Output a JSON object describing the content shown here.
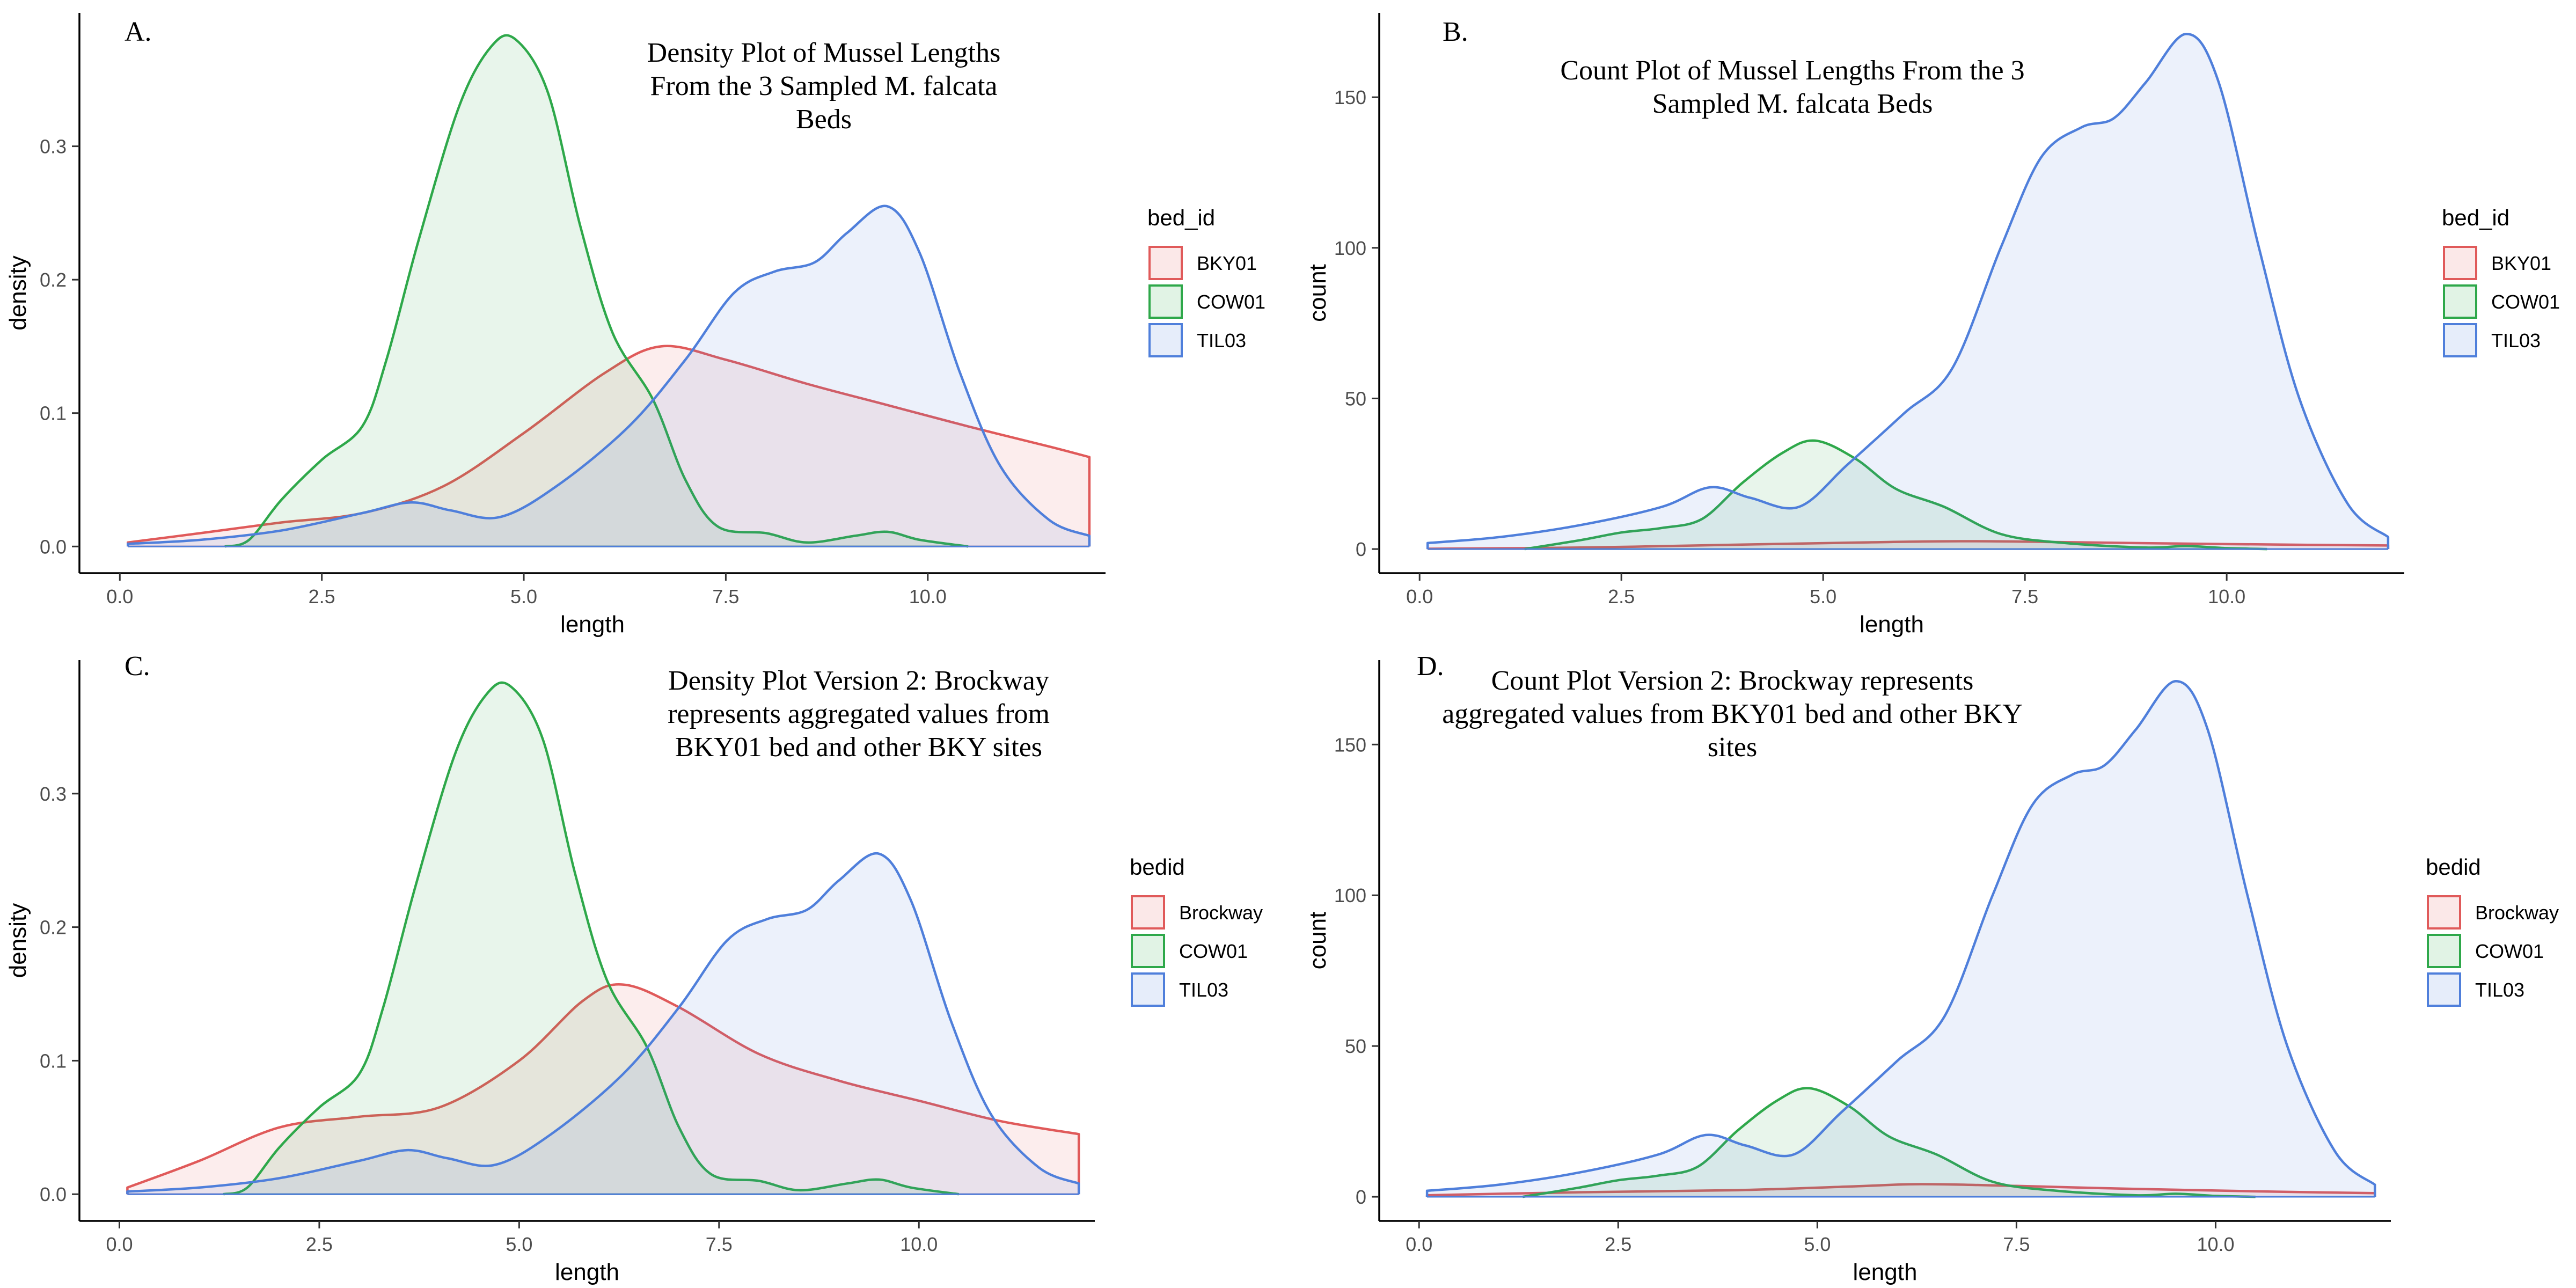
{
  "colors": {
    "red": "#e05a5a",
    "green": "#2ea84a",
    "blue": "#4f7fdb"
  },
  "chart_data": [
    {
      "type": "area",
      "panel": "A.",
      "title_lines": [
        "Density Plot of Mussel Lengths",
        "From the 3 Sampled M. falcata",
        "Beds"
      ],
      "xlabel": "length",
      "ylabel": "density",
      "xlim": [
        -0.5,
        12.2
      ],
      "ylim": [
        -0.02,
        0.4
      ],
      "xticks": [
        0.0,
        2.5,
        5.0,
        7.5,
        10.0
      ],
      "yticks": [
        0.0,
        0.1,
        0.2,
        0.3
      ],
      "xtick_labels": [
        "0.0",
        "2.5",
        "5.0",
        "7.5",
        "10.0"
      ],
      "ytick_labels": [
        "0.0",
        "0.1",
        "0.2",
        "0.3"
      ],
      "grid": false,
      "legend_position": "right",
      "legend_title": "bed_id",
      "series": [
        {
          "name": "BKY01",
          "color": "#e05a5a",
          "points": [
            [
              0.1,
              0.003
            ],
            [
              1,
              0.01
            ],
            [
              2,
              0.018
            ],
            [
              3,
              0.025
            ],
            [
              4,
              0.045
            ],
            [
              5,
              0.085
            ],
            [
              6,
              0.13
            ],
            [
              6.7,
              0.15
            ],
            [
              7.5,
              0.14
            ],
            [
              8.5,
              0.122
            ],
            [
              9.5,
              0.106
            ],
            [
              10.5,
              0.09
            ],
            [
              11.5,
              0.075
            ],
            [
              12,
              0.067
            ]
          ]
        },
        {
          "name": "COW01",
          "color": "#2ea84a",
          "points": [
            [
              1.3,
              0
            ],
            [
              1.6,
              0.005
            ],
            [
              2,
              0.035
            ],
            [
              2.5,
              0.065
            ],
            [
              3,
              0.09
            ],
            [
              3.3,
              0.14
            ],
            [
              3.7,
              0.23
            ],
            [
              4.2,
              0.33
            ],
            [
              4.6,
              0.375
            ],
            [
              4.9,
              0.38
            ],
            [
              5.3,
              0.34
            ],
            [
              5.7,
              0.24
            ],
            [
              6.1,
              0.16
            ],
            [
              6.6,
              0.11
            ],
            [
              7,
              0.05
            ],
            [
              7.4,
              0.015
            ],
            [
              8,
              0.01
            ],
            [
              8.5,
              0.003
            ],
            [
              9.1,
              0.008
            ],
            [
              9.5,
              0.011
            ],
            [
              9.9,
              0.005
            ],
            [
              10.5,
              0
            ]
          ]
        },
        {
          "name": "TIL03",
          "color": "#4f7fdb",
          "points": [
            [
              0.1,
              0.002
            ],
            [
              1,
              0.005
            ],
            [
              2,
              0.012
            ],
            [
              3,
              0.025
            ],
            [
              3.6,
              0.033
            ],
            [
              4.1,
              0.027
            ],
            [
              4.7,
              0.022
            ],
            [
              5.4,
              0.045
            ],
            [
              6.3,
              0.09
            ],
            [
              7,
              0.14
            ],
            [
              7.6,
              0.19
            ],
            [
              8.1,
              0.206
            ],
            [
              8.6,
              0.213
            ],
            [
              9,
              0.235
            ],
            [
              9.5,
              0.255
            ],
            [
              9.9,
              0.22
            ],
            [
              10.4,
              0.13
            ],
            [
              10.9,
              0.06
            ],
            [
              11.5,
              0.02
            ],
            [
              12,
              0.008
            ]
          ]
        }
      ]
    },
    {
      "type": "area",
      "panel": "B.",
      "title_lines": [
        "Count Plot of Mussel Lengths From the 3",
        "Sampled M. falcata Beds"
      ],
      "xlabel": "length",
      "ylabel": "count",
      "xlim": [
        -0.5,
        12.2
      ],
      "ylim": [
        -8,
        178
      ],
      "xticks": [
        0.0,
        2.5,
        5.0,
        7.5,
        10.0
      ],
      "yticks": [
        0,
        50,
        100,
        150
      ],
      "xtick_labels": [
        "0.0",
        "2.5",
        "5.0",
        "7.5",
        "10.0"
      ],
      "ytick_labels": [
        "0",
        "50",
        "100",
        "150"
      ],
      "grid": false,
      "legend_position": "right",
      "legend_title": "bed_id",
      "series": [
        {
          "name": "BKY01",
          "color": "#e05a5a",
          "points": [
            [
              0.1,
              0.1
            ],
            [
              2,
              0.5
            ],
            [
              4,
              1.5
            ],
            [
              5.5,
              2.2
            ],
            [
              6.7,
              2.6
            ],
            [
              8,
              2.3
            ],
            [
              9.5,
              1.8
            ],
            [
              11,
              1.4
            ],
            [
              12,
              1.2
            ]
          ]
        },
        {
          "name": "COW01",
          "color": "#2ea84a",
          "points": [
            [
              1.3,
              0
            ],
            [
              2,
              3
            ],
            [
              2.5,
              5.5
            ],
            [
              3,
              7
            ],
            [
              3.5,
              10
            ],
            [
              4,
              22
            ],
            [
              4.5,
              32
            ],
            [
              4.9,
              36
            ],
            [
              5.4,
              30
            ],
            [
              5.9,
              20
            ],
            [
              6.5,
              14
            ],
            [
              7.2,
              5
            ],
            [
              8,
              2
            ],
            [
              9,
              0.5
            ],
            [
              9.5,
              1
            ],
            [
              10,
              0.3
            ],
            [
              10.5,
              0
            ]
          ]
        },
        {
          "name": "TIL03",
          "color": "#4f7fdb",
          "points": [
            [
              0.1,
              2
            ],
            [
              1,
              4
            ],
            [
              2,
              8
            ],
            [
              3,
              14
            ],
            [
              3.6,
              20.5
            ],
            [
              4.1,
              17
            ],
            [
              4.7,
              14
            ],
            [
              5.3,
              28
            ],
            [
              6,
              45
            ],
            [
              6.6,
              60
            ],
            [
              7.2,
              100
            ],
            [
              7.7,
              130
            ],
            [
              8.2,
              140
            ],
            [
              8.6,
              143
            ],
            [
              9,
              155
            ],
            [
              9.5,
              171
            ],
            [
              9.9,
              155
            ],
            [
              10.4,
              100
            ],
            [
              10.9,
              50
            ],
            [
              11.5,
              15
            ],
            [
              12,
              4
            ]
          ]
        }
      ]
    },
    {
      "type": "area",
      "panel": "C.",
      "title_lines": [
        "Density Plot Version 2: Brockway",
        "represents aggregated values from",
        "BKY01 bed and other BKY sites"
      ],
      "xlabel": "length",
      "ylabel": "density",
      "xlim": [
        -0.5,
        12.2
      ],
      "ylim": [
        -0.02,
        0.4
      ],
      "xticks": [
        0.0,
        2.5,
        5.0,
        7.5,
        10.0
      ],
      "yticks": [
        0.0,
        0.1,
        0.2,
        0.3
      ],
      "xtick_labels": [
        "0.0",
        "2.5",
        "5.0",
        "7.5",
        "10.0"
      ],
      "ytick_labels": [
        "0.0",
        "0.1",
        "0.2",
        "0.3"
      ],
      "grid": false,
      "legend_position": "right",
      "legend_title": "bedid",
      "series": [
        {
          "name": "Brockway",
          "color": "#e05a5a",
          "points": [
            [
              0.1,
              0.005
            ],
            [
              1,
              0.025
            ],
            [
              2,
              0.05
            ],
            [
              3,
              0.058
            ],
            [
              4,
              0.065
            ],
            [
              5,
              0.1
            ],
            [
              5.8,
              0.145
            ],
            [
              6.3,
              0.157
            ],
            [
              7,
              0.14
            ],
            [
              8,
              0.105
            ],
            [
              9,
              0.085
            ],
            [
              10,
              0.07
            ],
            [
              11,
              0.055
            ],
            [
              12,
              0.045
            ]
          ]
        },
        {
          "name": "COW01",
          "color": "#2ea84a",
          "points": [
            [
              1.3,
              0
            ],
            [
              1.6,
              0.005
            ],
            [
              2,
              0.035
            ],
            [
              2.5,
              0.065
            ],
            [
              3,
              0.09
            ],
            [
              3.3,
              0.14
            ],
            [
              3.7,
              0.23
            ],
            [
              4.2,
              0.33
            ],
            [
              4.6,
              0.375
            ],
            [
              4.9,
              0.38
            ],
            [
              5.3,
              0.34
            ],
            [
              5.7,
              0.24
            ],
            [
              6.1,
              0.16
            ],
            [
              6.6,
              0.11
            ],
            [
              7,
              0.05
            ],
            [
              7.4,
              0.015
            ],
            [
              8,
              0.01
            ],
            [
              8.5,
              0.003
            ],
            [
              9.1,
              0.008
            ],
            [
              9.5,
              0.011
            ],
            [
              9.9,
              0.005
            ],
            [
              10.5,
              0
            ]
          ]
        },
        {
          "name": "TIL03",
          "color": "#4f7fdb",
          "points": [
            [
              0.1,
              0.002
            ],
            [
              1,
              0.005
            ],
            [
              2,
              0.012
            ],
            [
              3,
              0.025
            ],
            [
              3.6,
              0.033
            ],
            [
              4.1,
              0.027
            ],
            [
              4.7,
              0.022
            ],
            [
              5.4,
              0.045
            ],
            [
              6.3,
              0.09
            ],
            [
              7,
              0.14
            ],
            [
              7.6,
              0.19
            ],
            [
              8.1,
              0.206
            ],
            [
              8.6,
              0.213
            ],
            [
              9,
              0.235
            ],
            [
              9.5,
              0.255
            ],
            [
              9.9,
              0.22
            ],
            [
              10.4,
              0.13
            ],
            [
              10.9,
              0.06
            ],
            [
              11.5,
              0.02
            ],
            [
              12,
              0.008
            ]
          ]
        }
      ]
    },
    {
      "type": "area",
      "panel": "D.",
      "title_lines": [
        "Count Plot Version 2: Brockway represents",
        "aggregated values from BKY01 bed and other BKY",
        "sites"
      ],
      "xlabel": "length",
      "ylabel": "count",
      "xlim": [
        -0.5,
        12.2
      ],
      "ylim": [
        -8,
        178
      ],
      "xticks": [
        0.0,
        2.5,
        5.0,
        7.5,
        10.0
      ],
      "yticks": [
        0,
        50,
        100,
        150
      ],
      "xtick_labels": [
        "0.0",
        "2.5",
        "5.0",
        "7.5",
        "10.0"
      ],
      "ytick_labels": [
        "0",
        "50",
        "100",
        "150"
      ],
      "grid": false,
      "legend_position": "right",
      "legend_title": "bedid",
      "series": [
        {
          "name": "Brockway",
          "color": "#e05a5a",
          "points": [
            [
              0.1,
              0.5
            ],
            [
              2,
              1.5
            ],
            [
              4,
              2.2
            ],
            [
              5.5,
              3.5
            ],
            [
              6.3,
              4.2
            ],
            [
              7.5,
              3.6
            ],
            [
              9,
              2.6
            ],
            [
              10.5,
              1.8
            ],
            [
              12,
              1.2
            ]
          ]
        },
        {
          "name": "COW01",
          "color": "#2ea84a",
          "points": [
            [
              1.3,
              0
            ],
            [
              2,
              3
            ],
            [
              2.5,
              5.5
            ],
            [
              3,
              7
            ],
            [
              3.5,
              10
            ],
            [
              4,
              22
            ],
            [
              4.5,
              32
            ],
            [
              4.9,
              36
            ],
            [
              5.4,
              30
            ],
            [
              5.9,
              20
            ],
            [
              6.5,
              14
            ],
            [
              7.2,
              5
            ],
            [
              8,
              2
            ],
            [
              9,
              0.5
            ],
            [
              9.5,
              1
            ],
            [
              10,
              0.3
            ],
            [
              10.5,
              0
            ]
          ]
        },
        {
          "name": "TIL03",
          "color": "#4f7fdb",
          "points": [
            [
              0.1,
              2
            ],
            [
              1,
              4
            ],
            [
              2,
              8
            ],
            [
              3,
              14
            ],
            [
              3.6,
              20.5
            ],
            [
              4.1,
              17
            ],
            [
              4.7,
              14
            ],
            [
              5.3,
              28
            ],
            [
              6,
              45
            ],
            [
              6.6,
              60
            ],
            [
              7.2,
              100
            ],
            [
              7.7,
              130
            ],
            [
              8.2,
              140
            ],
            [
              8.6,
              143
            ],
            [
              9,
              155
            ],
            [
              9.5,
              171
            ],
            [
              9.9,
              155
            ],
            [
              10.4,
              100
            ],
            [
              10.9,
              50
            ],
            [
              11.5,
              15
            ],
            [
              12,
              4
            ]
          ]
        }
      ]
    }
  ]
}
